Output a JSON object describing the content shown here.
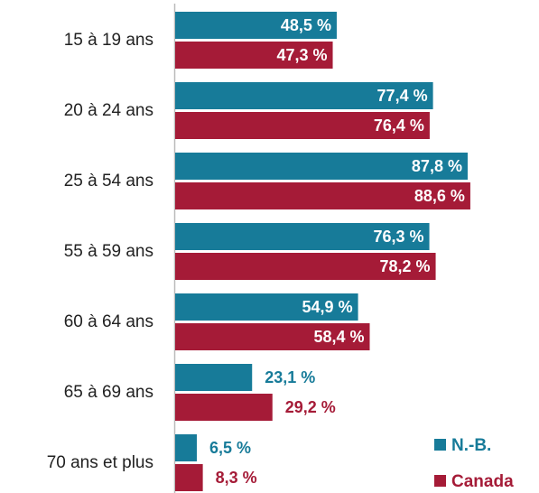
{
  "chart_data": {
    "type": "barh",
    "categories": [
      "15 à 19 ans",
      "20 à 24 ans",
      "25 à 54 ans",
      "55 à 59 ans",
      "60 à 64 ans",
      "65 à 69 ans",
      "70 ans et plus"
    ],
    "series": [
      {
        "name": "N.-B.",
        "color": "#177b99",
        "values": [
          48.5,
          77.4,
          87.8,
          76.3,
          54.9,
          23.1,
          6.5
        ],
        "value_labels": [
          "48,5 %",
          "77,4 %",
          "87,8 %",
          "76,3 %",
          "54,9 %",
          "23,1 %",
          "6,5 %"
        ]
      },
      {
        "name": "Canada",
        "color": "#a51b37",
        "values": [
          47.3,
          76.4,
          88.6,
          78.2,
          58.4,
          29.2,
          8.3
        ],
        "value_labels": [
          "47,3 %",
          "76,4 %",
          "88,6 %",
          "78,2 %",
          "58,4 %",
          "29,2 %",
          "8,3 %"
        ]
      }
    ],
    "xlim": [
      0,
      100
    ],
    "legend": "bottom-right"
  }
}
